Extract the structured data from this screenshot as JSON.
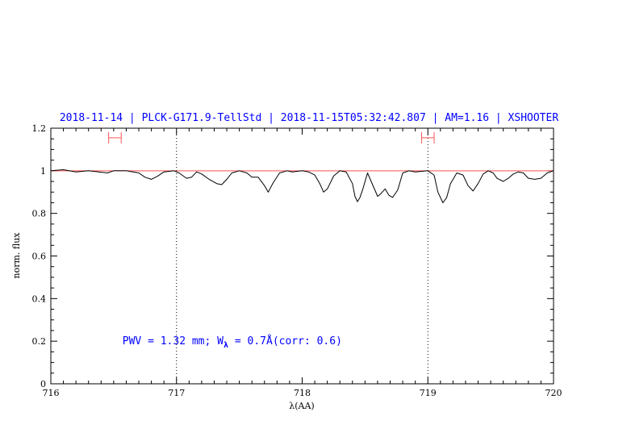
{
  "chart_data": {
    "type": "line",
    "title": "2018-11-14 | PLCK-G171.9-TellStd | 2018-11-15T05:32:42.807 | AM=1.16 | XSHOOTER",
    "xlabel": "λ(AA)",
    "ylabel": "norm. flux",
    "xlim": [
      716,
      720
    ],
    "ylim": [
      0,
      1.2
    ],
    "xticks": [
      716,
      717,
      718,
      719,
      720
    ],
    "xtick_labels": [
      "716",
      "717",
      "718",
      "719",
      "720"
    ],
    "yticks": [
      0,
      0.2,
      0.4,
      0.6,
      0.8,
      1,
      1.2
    ],
    "ytick_labels": [
      "0",
      "0.2",
      "0.4",
      "0.6",
      "0.8",
      "1",
      "1.2"
    ],
    "grid": false,
    "annotation": {
      "prefix": "PWV = 1.32 mm; W",
      "subscript": "λ",
      "suffix": " = 0.7Å(corr: 0.6)",
      "x": 716.57,
      "y": 0.2
    },
    "reference_line": {
      "y": 1.0,
      "color": "#ff5555"
    },
    "vertical_markers": [
      {
        "x": 717.0,
        "style": "dotted"
      },
      {
        "x": 719.0,
        "style": "dotted"
      }
    ],
    "range_markers": [
      {
        "x_start": 716.46,
        "x_end": 716.56,
        "y": 1.155,
        "color": "#ff5555"
      },
      {
        "x_start": 718.95,
        "x_end": 719.05,
        "y": 1.155,
        "color": "#ff5555"
      }
    ],
    "series": [
      {
        "color": "#000000",
        "x": [
          716.0,
          716.1,
          716.2,
          716.3,
          716.45,
          716.5,
          716.6,
          716.7,
          716.75,
          716.8,
          716.85,
          716.9,
          716.98,
          717.02,
          717.08,
          717.12,
          717.16,
          717.2,
          717.26,
          717.32,
          717.36,
          717.4,
          717.44,
          717.5,
          717.56,
          717.6,
          717.65,
          717.7,
          717.73,
          717.77,
          717.82,
          717.88,
          717.92,
          718.0,
          718.05,
          718.1,
          718.14,
          718.17,
          718.2,
          718.25,
          718.3,
          718.35,
          718.4,
          718.42,
          718.44,
          718.46,
          718.48,
          718.52,
          718.56,
          718.6,
          718.63,
          718.66,
          718.69,
          718.72,
          718.76,
          718.8,
          718.85,
          718.9,
          719.0,
          719.05,
          719.08,
          719.12,
          719.15,
          719.18,
          719.23,
          719.28,
          719.32,
          719.36,
          719.4,
          719.44,
          719.48,
          719.52,
          719.55,
          719.6,
          719.64,
          719.68,
          719.72,
          719.76,
          719.8,
          719.85,
          719.9,
          719.95,
          720.0
        ],
        "y": [
          1.0,
          1.005,
          0.995,
          1.0,
          0.99,
          1.0,
          1.0,
          0.99,
          0.97,
          0.96,
          0.975,
          0.995,
          1.0,
          0.99,
          0.965,
          0.97,
          0.995,
          0.985,
          0.96,
          0.94,
          0.935,
          0.96,
          0.99,
          1.0,
          0.99,
          0.97,
          0.97,
          0.93,
          0.9,
          0.945,
          0.99,
          1.0,
          0.995,
          1.0,
          0.995,
          0.98,
          0.94,
          0.9,
          0.915,
          0.975,
          1.0,
          0.995,
          0.94,
          0.88,
          0.855,
          0.875,
          0.91,
          0.99,
          0.935,
          0.88,
          0.895,
          0.915,
          0.885,
          0.875,
          0.91,
          0.99,
          1.0,
          0.995,
          1.0,
          0.98,
          0.9,
          0.85,
          0.875,
          0.94,
          0.99,
          0.98,
          0.93,
          0.905,
          0.94,
          0.985,
          1.0,
          0.99,
          0.965,
          0.95,
          0.965,
          0.985,
          0.995,
          0.99,
          0.965,
          0.96,
          0.965,
          0.99,
          1.0
        ]
      }
    ]
  }
}
